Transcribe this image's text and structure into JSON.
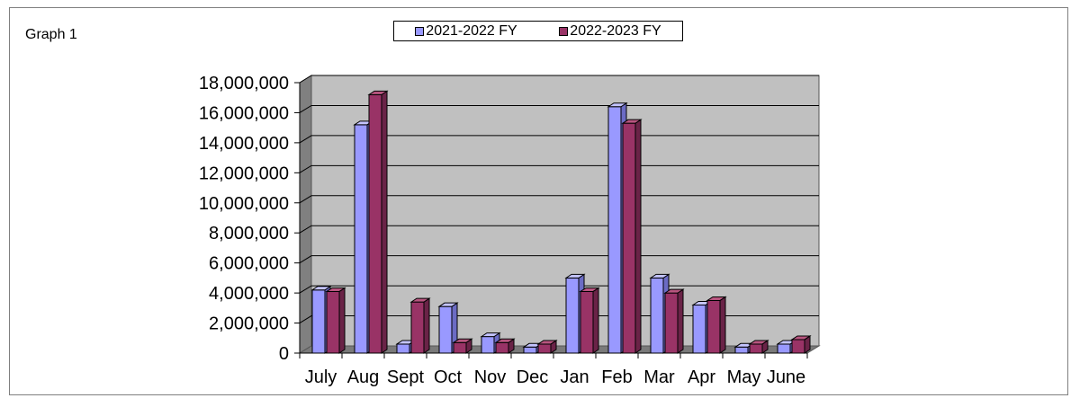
{
  "graph_label": "Graph 1",
  "colors": {
    "series1": "#9999ff",
    "series1_side": "#6b6bc4",
    "series1_top": "#c4c4ff",
    "series2": "#993366",
    "series2_side": "#6a2347",
    "series2_top": "#b8557f",
    "wall": "#c0c0c0",
    "wall_side": "#808080",
    "floor": "#7a7a7a"
  },
  "chart_data": {
    "type": "bar",
    "categories": [
      "July",
      "Aug",
      "Sept",
      "Oct",
      "Nov",
      "Dec",
      "Jan",
      "Feb",
      "Mar",
      "Apr",
      "May",
      "June"
    ],
    "series": [
      {
        "name": "2021-2022 FY",
        "values": [
          4200000,
          15200000,
          600000,
          3100000,
          1100000,
          400000,
          5000000,
          16400000,
          5000000,
          3200000,
          400000,
          600000
        ]
      },
      {
        "name": "2022-2023 FY",
        "values": [
          4100000,
          17200000,
          3400000,
          700000,
          700000,
          600000,
          4100000,
          15300000,
          4000000,
          3500000,
          600000,
          900000
        ]
      }
    ],
    "y_ticks": [
      "0",
      "2,000,000",
      "4,000,000",
      "6,000,000",
      "8,000,000",
      "10,000,000",
      "12,000,000",
      "14,000,000",
      "16,000,000",
      "18,000,000"
    ],
    "ylim": [
      0,
      18000000
    ],
    "grid": true,
    "legend_position": "top-center"
  }
}
